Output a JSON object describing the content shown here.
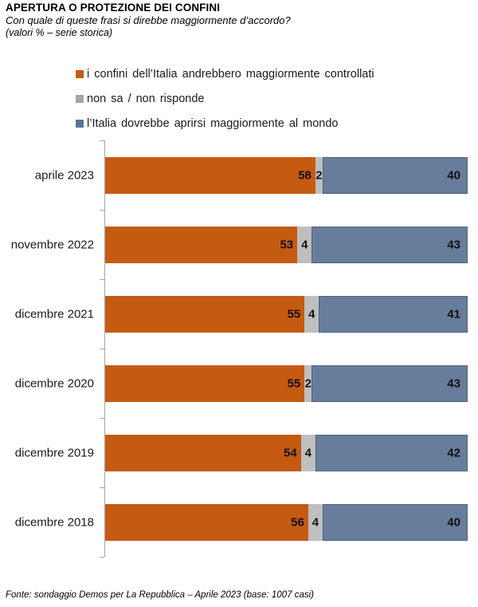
{
  "chart_data": {
    "type": "bar",
    "orientation": "horizontal",
    "stacked": true,
    "title": "APERTURA O PROTEZIONE DEI CONFINI",
    "subtitle": "Con quale di queste frasi si direbbe maggiormente d’accordo?",
    "note": "(valori % – serie storica)",
    "source": "Fonte: sondaggio Demos per La Repubblica – Aprile 2023 (base: 1007 casi)",
    "categories": [
      "aprile 2023",
      "novembre 2022",
      "dicembre 2021",
      "dicembre 2020",
      "dicembre 2019",
      "dicembre 2018"
    ],
    "series": [
      {
        "key": "confini-controllati",
        "name": "i confini dell’Italia andrebbero maggiormente controllati",
        "color": "#C55A11",
        "legend_color": "#C55A11",
        "values": [
          58,
          53,
          55,
          55,
          54,
          56
        ]
      },
      {
        "key": "non-sa",
        "name": "non sa / non risponde",
        "color": "#BFBFBF",
        "legend_color": "#A6A6A6",
        "values": [
          2,
          4,
          4,
          2,
          4,
          4
        ]
      },
      {
        "key": "aprirsi-mondo",
        "name": "l’Italia dovrebbe aprirsi maggiormente al mondo",
        "color": "#687C9C",
        "legend_color": "#5E7495",
        "values": [
          40,
          43,
          41,
          43,
          42,
          40
        ]
      }
    ],
    "xlim": [
      0,
      100
    ],
    "value_labels": true,
    "legend_position": "top-left",
    "grid": false,
    "axis_color": "#A6A6A6"
  }
}
